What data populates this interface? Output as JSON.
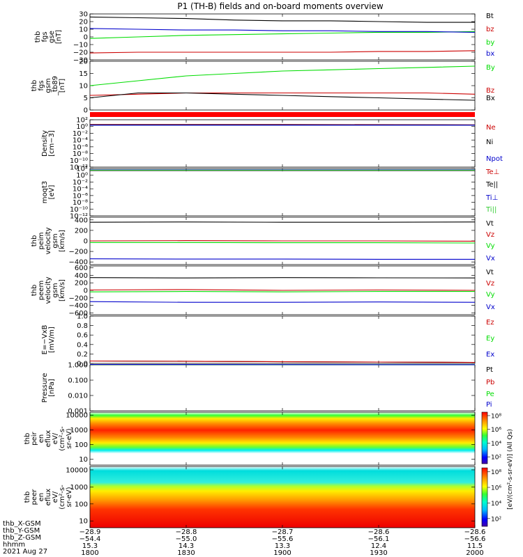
{
  "title": "P1 (TH-B) fields and on-board moments overview",
  "date": "2021 Aug 27",
  "colors": {
    "black": "#000000",
    "red": "#cc0000",
    "green": "#00dd00",
    "blue": "#0000cc",
    "lgreen": "#33cc33"
  },
  "chart_data": [
    {
      "type": "line",
      "ylabel": [
        "thb",
        "fgs",
        "gse",
        "[nT]"
      ],
      "yticks": [
        {
          "v": 30,
          "t": "30"
        },
        {
          "v": 20,
          "t": "20"
        },
        {
          "v": 10,
          "t": "10"
        },
        {
          "v": 0,
          "t": "0"
        },
        {
          "v": -10,
          "t": "−10"
        },
        {
          "v": -20,
          "t": "−20"
        },
        {
          "v": -30,
          "t": "−30"
        }
      ],
      "ylim": [
        -30,
        30
      ],
      "scale": "linear",
      "series": [
        {
          "name": "Bt",
          "color": "black",
          "x": [
            1800,
            1815,
            1830,
            1845,
            1900,
            1915,
            1930,
            1945,
            2000
          ],
          "y": [
            26,
            25,
            24,
            22,
            21,
            21,
            20,
            19,
            19
          ]
        },
        {
          "name": "bz",
          "color": "red",
          "x": [
            1800,
            1815,
            1830,
            1845,
            1900,
            1915,
            1930,
            1945,
            2000
          ],
          "y": [
            -21,
            -20,
            -20,
            -20,
            -20,
            -20,
            -19,
            -19,
            -18
          ]
        },
        {
          "name": "by",
          "color": "green",
          "x": [
            1800,
            1815,
            1830,
            1845,
            1900,
            1915,
            1930,
            1945,
            2000
          ],
          "y": [
            -2,
            0,
            2,
            3,
            4,
            5,
            6,
            6,
            7
          ]
        },
        {
          "name": "bx",
          "color": "blue",
          "x": [
            1800,
            1815,
            1830,
            1845,
            1900,
            1915,
            1930,
            1945,
            2000
          ],
          "y": [
            11,
            10,
            9,
            9,
            8,
            8,
            7,
            7,
            6
          ]
        }
      ]
    },
    {
      "type": "line",
      "ylabel": [
        "thb",
        "fgs",
        "gsm",
        "_tb89",
        "[nT]"
      ],
      "yticks": [
        {
          "v": 20,
          "t": "20"
        },
        {
          "v": 15,
          "t": "15"
        },
        {
          "v": 10,
          "t": "10"
        },
        {
          "v": 5,
          "t": "5"
        },
        {
          "v": 0,
          "t": "0"
        }
      ],
      "ylim": [
        0,
        20
      ],
      "scale": "linear",
      "series": [
        {
          "name": "By",
          "color": "green",
          "x": [
            1800,
            1815,
            1830,
            1845,
            1900,
            1915,
            1930,
            1945,
            2000
          ],
          "y": [
            10,
            12,
            14,
            15,
            16,
            16.5,
            17,
            17.5,
            18
          ]
        },
        {
          "name": "Bz",
          "color": "red",
          "x": [
            1800,
            1815,
            1830,
            1845,
            1900,
            1915,
            1930,
            1945,
            2000
          ],
          "y": [
            6,
            6.5,
            7,
            7,
            7,
            7,
            7,
            7,
            6.5
          ]
        },
        {
          "name": "Bx",
          "color": "black",
          "x": [
            1800,
            1815,
            1830,
            1845,
            1900,
            1915,
            1930,
            1945,
            2000
          ],
          "y": [
            5,
            7,
            7,
            6.5,
            6,
            5.5,
            5,
            4.5,
            4
          ]
        }
      ]
    },
    {
      "type": "line",
      "ylabel": [
        "Density",
        "[cm−3]"
      ],
      "yticks": [
        {
          "v": 2,
          "t": "10²"
        },
        {
          "v": 0,
          "t": "10⁰"
        },
        {
          "v": -2,
          "t": "10⁻²"
        },
        {
          "v": -4,
          "t": "10⁻⁴"
        },
        {
          "v": -6,
          "t": "10⁻⁶"
        },
        {
          "v": -8,
          "t": "10⁻⁸"
        },
        {
          "v": -10,
          "t": "10⁻¹⁰"
        },
        {
          "v": -12,
          "t": "10⁻¹²"
        }
      ],
      "ylim": [
        -12,
        2
      ],
      "scale": "log",
      "series": [
        {
          "name": "Ne",
          "color": "red",
          "x": [
            1800,
            1900,
            2000
          ],
          "y": [
            0.6,
            0.6,
            0.5
          ]
        },
        {
          "name": "Ni",
          "color": "black",
          "x": [
            1800,
            1900,
            2000
          ],
          "y": [
            0.5,
            0.5,
            0.45
          ]
        },
        {
          "name": "Npot",
          "color": "blue",
          "x": [
            1800,
            1900,
            2000
          ],
          "y": [
            0.4,
            0.4,
            0.4
          ]
        }
      ]
    },
    {
      "type": "line",
      "ylabel": [
        "moqt3",
        "[eV]"
      ],
      "yticks": [
        {
          "v": 2,
          "t": "10²"
        },
        {
          "v": 0,
          "t": "10⁰"
        },
        {
          "v": -2,
          "t": "10⁻²"
        },
        {
          "v": -4,
          "t": "10⁻⁴"
        },
        {
          "v": -6,
          "t": "10⁻⁶"
        },
        {
          "v": -8,
          "t": "10⁻⁸"
        },
        {
          "v": -10,
          "t": "10⁻¹⁰"
        },
        {
          "v": -12,
          "t": "10⁻¹²"
        }
      ],
      "ylim": [
        -12,
        2
      ],
      "scale": "log",
      "series": [
        {
          "name": "Te⊥",
          "color": "red",
          "x": [
            1800,
            1900,
            2000
          ],
          "y": [
            1.5,
            1.5,
            1.5
          ]
        },
        {
          "name": "Te||",
          "color": "black",
          "x": [
            1800,
            1900,
            2000
          ],
          "y": [
            1.4,
            1.4,
            1.4
          ]
        },
        {
          "name": "Ti⊥",
          "color": "blue",
          "x": [
            1800,
            1900,
            2000
          ],
          "y": [
            1.6,
            1.6,
            1.6
          ]
        },
        {
          "name": "Ti||",
          "color": "lgreen",
          "x": [
            1800,
            1900,
            2000
          ],
          "y": [
            1.5,
            1.5,
            1.5
          ]
        }
      ]
    },
    {
      "type": "line",
      "ylabel": [
        "thb",
        "peim",
        "velocity",
        "gsm",
        "[km/s]"
      ],
      "yticks": [
        {
          "v": 400,
          "t": "400"
        },
        {
          "v": 200,
          "t": "200"
        },
        {
          "v": 0,
          "t": "0"
        },
        {
          "v": -200,
          "t": "−200"
        },
        {
          "v": -400,
          "t": "−400"
        }
      ],
      "ylim": [
        -450,
        450
      ],
      "scale": "linear",
      "series": [
        {
          "name": "Vt",
          "color": "black",
          "x": [
            1800,
            1830,
            1900,
            1930,
            2000
          ],
          "y": [
            355,
            360,
            355,
            355,
            360
          ]
        },
        {
          "name": "Vz",
          "color": "red",
          "x": [
            1800,
            1830,
            1900,
            1930,
            2000
          ],
          "y": [
            0,
            5,
            0,
            0,
            -5
          ]
        },
        {
          "name": "Vy",
          "color": "green",
          "x": [
            1800,
            1830,
            1900,
            1930,
            2000
          ],
          "y": [
            -30,
            -30,
            -35,
            -35,
            -40
          ]
        },
        {
          "name": "Vx",
          "color": "blue",
          "x": [
            1800,
            1830,
            1900,
            1930,
            2000
          ],
          "y": [
            -340,
            -345,
            -345,
            -350,
            -350
          ]
        }
      ]
    },
    {
      "type": "line",
      "ylabel": [
        "thb",
        "peem",
        "velocity",
        "gsm",
        "[km/s]"
      ],
      "yticks": [
        {
          "v": 600,
          "t": "600"
        },
        {
          "v": 400,
          "t": "400"
        },
        {
          "v": 200,
          "t": "200"
        },
        {
          "v": 0,
          "t": "0"
        },
        {
          "v": -200,
          "t": "−200"
        },
        {
          "v": -400,
          "t": "−400"
        },
        {
          "v": -600,
          "t": "−600"
        }
      ],
      "ylim": [
        -650,
        650
      ],
      "scale": "linear",
      "series": [
        {
          "name": "Vt",
          "color": "black",
          "x": [
            1800,
            1830,
            1900,
            1930,
            2000
          ],
          "y": [
            340,
            330,
            340,
            335,
            330
          ]
        },
        {
          "name": "Vz",
          "color": "red",
          "x": [
            1800,
            1830,
            1900,
            1930,
            2000
          ],
          "y": [
            10,
            20,
            0,
            10,
            0
          ]
        },
        {
          "name": "Vy",
          "color": "green",
          "x": [
            1800,
            1830,
            1900,
            1930,
            2000
          ],
          "y": [
            -40,
            -30,
            -40,
            -30,
            -30
          ]
        },
        {
          "name": "Vx",
          "color": "blue",
          "x": [
            1800,
            1830,
            1900,
            1930,
            2000
          ],
          "y": [
            -300,
            -320,
            -320,
            -310,
            -320
          ]
        }
      ]
    },
    {
      "type": "line",
      "ylabel": [
        "E=−VxB",
        "[mV/m]"
      ],
      "yticks": [
        {
          "v": 1.0,
          "t": "1.0"
        },
        {
          "v": 0.8,
          "t": "0.8"
        },
        {
          "v": 0.6,
          "t": "0.6"
        },
        {
          "v": 0.4,
          "t": "0.4"
        },
        {
          "v": 0.2,
          "t": "0.2"
        },
        {
          "v": 0.0,
          "t": "0.0"
        }
      ],
      "ylim": [
        0,
        1
      ],
      "scale": "linear",
      "series": [
        {
          "name": "Ez",
          "color": "red",
          "x": [],
          "y": []
        },
        {
          "name": "Ey",
          "color": "green",
          "x": [],
          "y": []
        },
        {
          "name": "Ex",
          "color": "blue",
          "x": [],
          "y": []
        }
      ]
    },
    {
      "type": "line",
      "ylabel": [
        "Pressure",
        "[nPa]"
      ],
      "yticks": [
        {
          "v": 0,
          "t": "1.000"
        },
        {
          "v": -1,
          "t": "0.100"
        },
        {
          "v": -2,
          "t": "0.010"
        },
        {
          "v": -3,
          "t": "0.001"
        }
      ],
      "ylim": [
        -3,
        0
      ],
      "scale": "log",
      "series": [
        {
          "name": "Pt",
          "color": "black",
          "x": [
            1800,
            1830,
            1900,
            1930,
            2000
          ],
          "y": [
            0.25,
            0.23,
            0.2,
            0.18,
            0.16
          ]
        },
        {
          "name": "Pb",
          "color": "red",
          "x": [
            1800,
            1830,
            1900,
            1930,
            2000
          ],
          "y": [
            0.25,
            0.23,
            0.2,
            0.18,
            0.16
          ]
        },
        {
          "name": "Pe",
          "color": "green",
          "x": [
            1800,
            1830,
            1900,
            1930,
            2000
          ],
          "y": [
            0.02,
            0.015,
            0.011,
            0.008,
            0.007
          ]
        },
        {
          "name": "Pi",
          "color": "blue",
          "x": [
            1800,
            1830,
            1900,
            1930,
            2000
          ],
          "y": [
            0.025,
            0.02,
            0.014,
            0.01,
            0.008
          ]
        }
      ]
    },
    {
      "type": "heatmap",
      "ylabel": [
        "thb",
        "peir",
        "en",
        "eflux",
        "eV/",
        "(cm²-s-",
        "sr-eV)"
      ],
      "yticks": [
        {
          "v": 4,
          "t": "10000"
        },
        {
          "v": 3,
          "t": "1000"
        },
        {
          "v": 2,
          "t": "100"
        },
        {
          "v": 1,
          "t": "10"
        }
      ],
      "ylim": [
        0.6,
        4.2
      ],
      "scale": "log"
    },
    {
      "type": "heatmap",
      "ylabel": [
        "thb",
        "peer",
        "en",
        "eflux",
        "eV/",
        "(cm²-s-",
        "sr-eV)"
      ],
      "yticks": [
        {
          "v": 4,
          "t": "10000"
        },
        {
          "v": 3,
          "t": "1000"
        },
        {
          "v": 2,
          "t": "100"
        },
        {
          "v": 1,
          "t": "10"
        }
      ],
      "ylim": [
        0.6,
        4.2
      ],
      "scale": "log"
    }
  ],
  "colorbar": {
    "ticks": [
      {
        "v": 8,
        "t": "10⁸"
      },
      {
        "v": 6,
        "t": "10⁶"
      },
      {
        "v": 4,
        "t": "10⁴"
      },
      {
        "v": 2,
        "t": "10²"
      }
    ],
    "range": [
      1,
      8.5
    ],
    "label": "[eV/(cm²-s-sr-eV)] (All Qs)"
  },
  "xaxis": {
    "ticks": [
      1800,
      1830,
      1900,
      1930,
      2000
    ],
    "rowlabels": [
      "thb_X-GSM",
      "thb_Y-GSM",
      "thb_Z-GSM",
      "hhmm"
    ],
    "rows": [
      [
        "−28.9",
        "−28.8",
        "−28.7",
        "−28.6",
        "−28.6"
      ],
      [
        "−54.4",
        "−55.0",
        "−55.6",
        "−56.1",
        "−56.6"
      ],
      [
        "15.3",
        "14.3",
        "13.3",
        "12.4",
        "11.5"
      ],
      [
        "1800",
        "1830",
        "1900",
        "1930",
        "2000"
      ]
    ]
  }
}
